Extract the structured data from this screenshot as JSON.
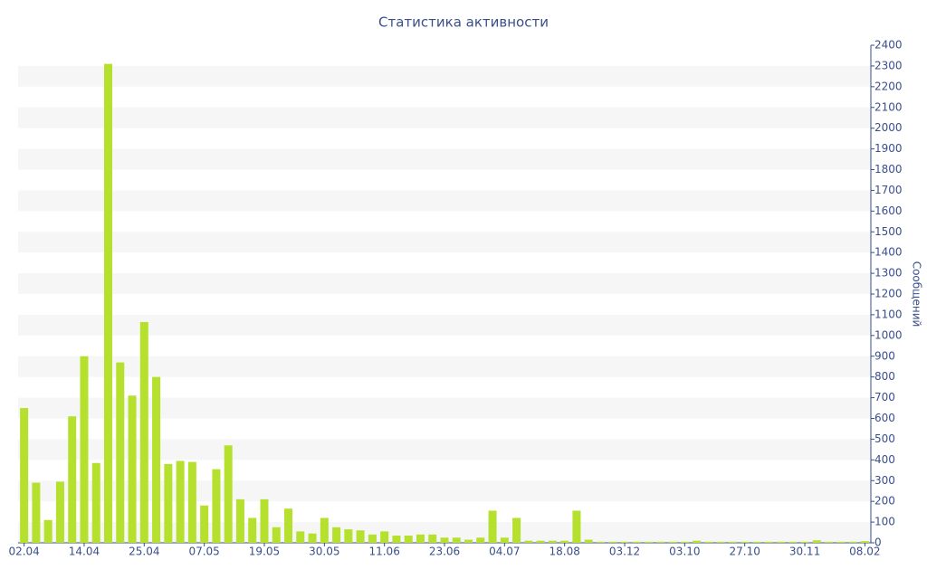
{
  "chart_data": {
    "type": "bar",
    "title": "Статистика активности",
    "y_label": "Сообщений",
    "categories": [
      "02.04",
      null,
      null,
      null,
      null,
      "14.04",
      null,
      null,
      null,
      null,
      "25.04",
      null,
      null,
      null,
      null,
      "07.05",
      null,
      null,
      null,
      null,
      "19.05",
      null,
      null,
      null,
      null,
      "30.05",
      null,
      null,
      null,
      null,
      "11.06",
      null,
      null,
      null,
      null,
      "23.06",
      null,
      null,
      null,
      null,
      "04.07",
      null,
      null,
      null,
      null,
      "18.08",
      null,
      null,
      null,
      null,
      "03.12",
      null,
      null,
      null,
      null,
      "03.10",
      null,
      null,
      null,
      null,
      "27.10",
      null,
      null,
      null,
      null,
      "30.11",
      null,
      null,
      null,
      null,
      "08.02"
    ],
    "values": [
      650,
      290,
      110,
      295,
      610,
      900,
      385,
      2310,
      870,
      710,
      1065,
      800,
      380,
      395,
      390,
      180,
      355,
      470,
      210,
      120,
      210,
      75,
      165,
      55,
      45,
      120,
      75,
      65,
      60,
      40,
      55,
      35,
      35,
      40,
      40,
      25,
      25,
      15,
      25,
      155,
      25,
      120,
      10,
      10,
      10,
      10,
      155,
      15,
      5,
      5,
      5,
      5,
      5,
      5,
      5,
      5,
      10,
      5,
      5,
      5,
      5,
      5,
      5,
      5,
      5,
      5,
      12,
      5,
      5,
      5,
      8
    ],
    "color": "#b5e02e",
    "ylim": [
      0,
      2400
    ],
    "yticks": [
      0,
      100,
      200,
      300,
      400,
      500,
      600,
      700,
      800,
      900,
      1000,
      1100,
      1200,
      1300,
      1400,
      1500,
      1600,
      1700,
      1800,
      1900,
      2000,
      2100,
      2200,
      2300,
      2400
    ],
    "grid": true
  }
}
